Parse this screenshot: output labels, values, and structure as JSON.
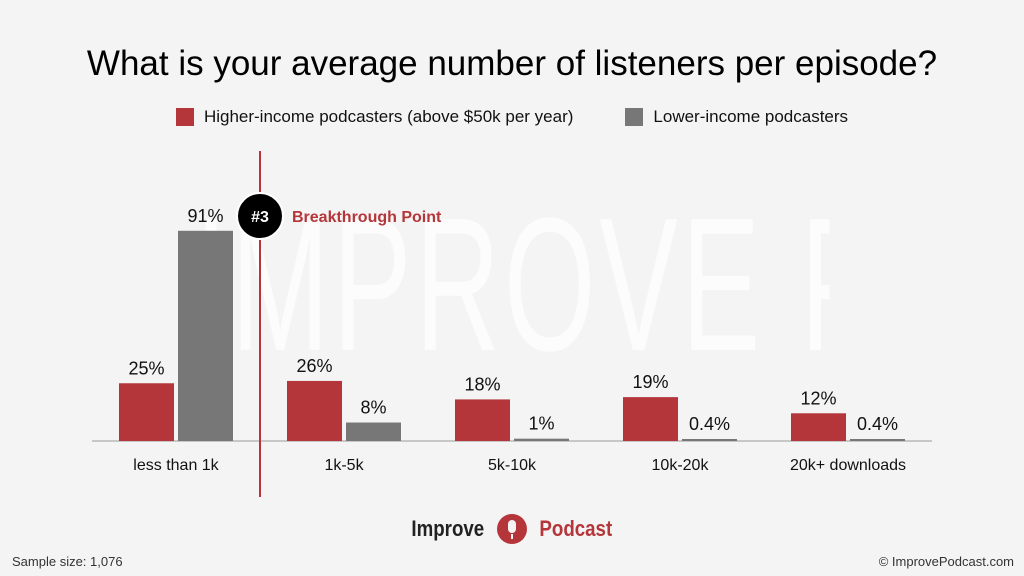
{
  "watermark": "IMPROVE PODCAST",
  "chart_data": {
    "type": "bar",
    "title": "What is your average number of listeners per episode?",
    "categories": [
      "less than 1k",
      "1k-5k",
      "5k-10k",
      "10k-20k",
      "20k+ downloads"
    ],
    "series": [
      {
        "name": "Higher-income podcasters (above $50k per year)",
        "color": "#b5363a",
        "values": [
          25,
          26,
          18,
          19,
          12
        ],
        "labels": [
          "25%",
          "26%",
          "18%",
          "19%",
          "12%"
        ]
      },
      {
        "name": "Lower-income podcasters",
        "color": "#777777",
        "values": [
          91,
          8,
          1,
          0.4,
          0.4
        ],
        "labels": [
          "91%",
          "8%",
          "1%",
          "0.4%",
          "0.4%"
        ]
      }
    ],
    "ylim": [
      0,
      100
    ],
    "legend_position": "top",
    "annotation": {
      "badge": "#3",
      "text": "Breakthrough Point",
      "color": "#b5363a"
    }
  },
  "footer": {
    "sample_size": "Sample size: 1,076",
    "copyright": "© ImprovePodcast.com"
  },
  "logo": {
    "word1": "Improve",
    "word2": "Podcast"
  }
}
